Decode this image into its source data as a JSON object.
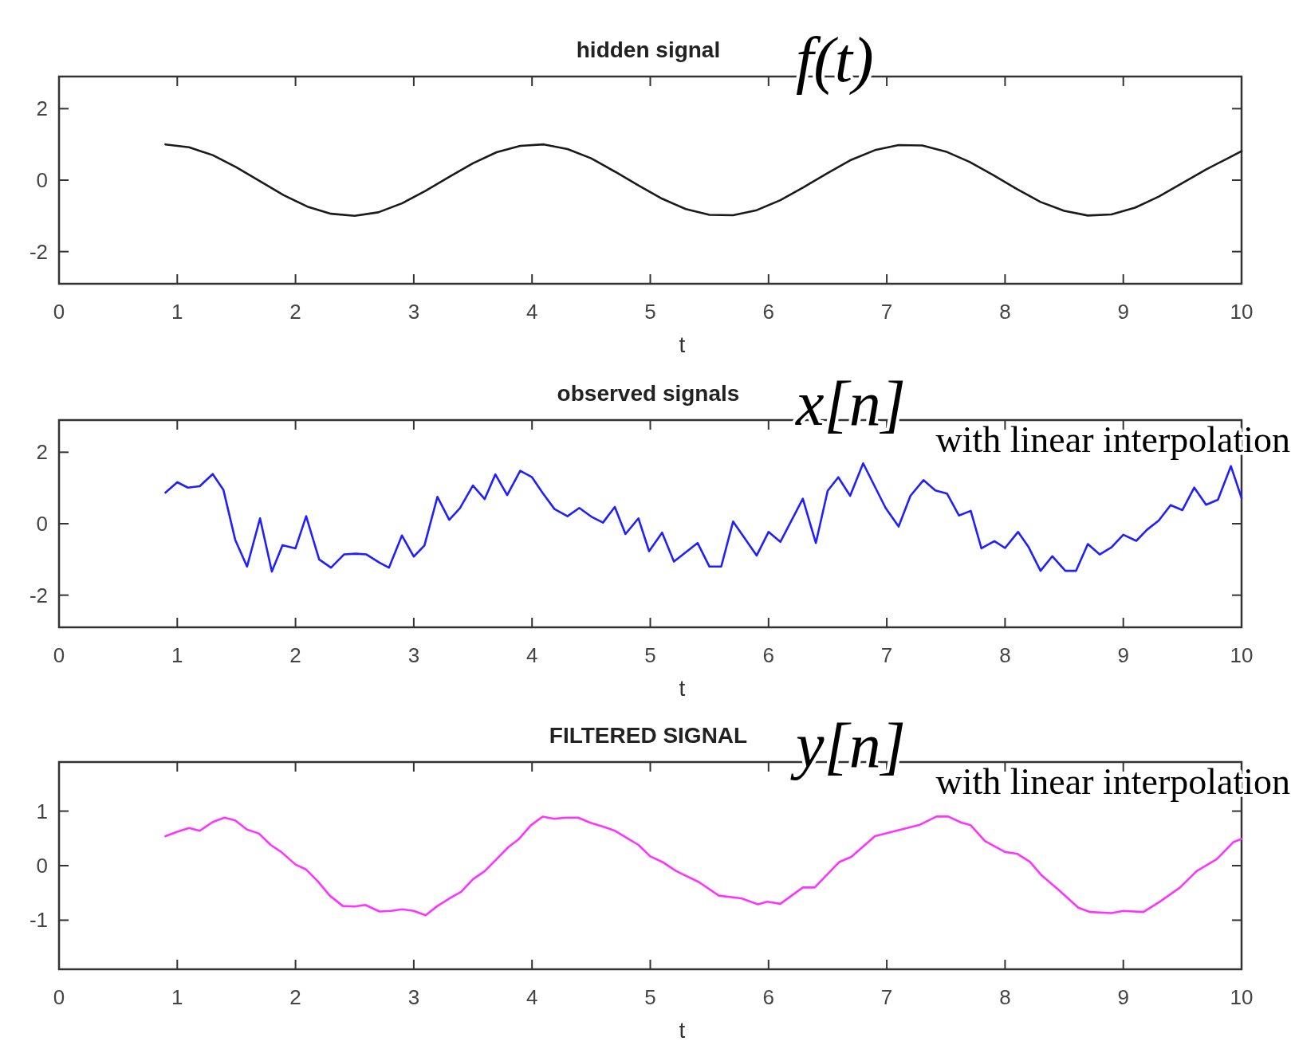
{
  "chart_data": [
    {
      "type": "line",
      "title": "hidden signal",
      "xlabel": "t",
      "annotations": [
        "f(t)"
      ],
      "xlim": [
        0,
        10
      ],
      "xticks": [
        0,
        1,
        2,
        3,
        4,
        5,
        6,
        7,
        8,
        9,
        10
      ],
      "ylim": [
        -2.9,
        2.9
      ],
      "yticks": [
        -2,
        0,
        2
      ],
      "grid": false,
      "series": [
        {
          "color": "#1a1a1a",
          "x": [
            0.9,
            1.1,
            1.3,
            1.5,
            1.7,
            1.9,
            2.1,
            2.3,
            2.5,
            2.7,
            2.9,
            3.1,
            3.3,
            3.5,
            3.7,
            3.9,
            4.1,
            4.3,
            4.5,
            4.7,
            4.9,
            5.1,
            5.3,
            5.5,
            5.7,
            5.9,
            6.1,
            6.3,
            6.5,
            6.7,
            6.9,
            7.1,
            7.3,
            7.5,
            7.7,
            7.9,
            8.1,
            8.3,
            8.5,
            8.7,
            8.9,
            9.1,
            9.3,
            9.5,
            9.7,
            9.9,
            10
          ],
          "values": [
            1.0,
            0.92,
            0.7,
            0.36,
            -0.03,
            -0.42,
            -0.74,
            -0.94,
            -1.0,
            -0.9,
            -0.65,
            -0.3,
            0.09,
            0.47,
            0.78,
            0.96,
            1.0,
            0.87,
            0.61,
            0.24,
            -0.15,
            -0.52,
            -0.81,
            -0.97,
            -0.98,
            -0.84,
            -0.56,
            -0.19,
            0.2,
            0.57,
            0.84,
            0.98,
            0.97,
            0.8,
            0.51,
            0.14,
            -0.25,
            -0.61,
            -0.86,
            -0.99,
            -0.96,
            -0.77,
            -0.46,
            -0.08,
            0.3,
            0.64,
            0.81
          ]
        }
      ]
    },
    {
      "type": "line",
      "title": "observed signals",
      "xlabel": "t",
      "annotations": [
        "x[n]",
        "with linear interpolation"
      ],
      "xlim": [
        0,
        10
      ],
      "xticks": [
        0,
        1,
        2,
        3,
        4,
        5,
        6,
        7,
        8,
        9,
        10
      ],
      "ylim": [
        -2.9,
        2.9
      ],
      "yticks": [
        -2,
        0,
        2
      ],
      "grid": false,
      "series": [
        {
          "color": "#1f1fff",
          "x": [
            0.9,
            1.0,
            1.09,
            1.19,
            1.3,
            1.39,
            1.49,
            1.59,
            1.7,
            1.8,
            1.89,
            2.0,
            2.09,
            2.2,
            2.3,
            2.41,
            2.51,
            2.6,
            2.71,
            2.79,
            2.9,
            3.0,
            3.09,
            3.2,
            3.3,
            3.39,
            3.5,
            3.6,
            3.69,
            3.79,
            3.9,
            4.0,
            4.09,
            4.19,
            4.3,
            4.4,
            4.5,
            4.6,
            4.7,
            4.79,
            4.9,
            4.99,
            5.1,
            5.2,
            5.4,
            5.5,
            5.6,
            5.7,
            5.9,
            6.0,
            6.1,
            6.29,
            6.4,
            6.5,
            6.59,
            6.69,
            6.8,
            6.99,
            7.1,
            7.2,
            7.31,
            7.41,
            7.51,
            7.61,
            7.71,
            7.8,
            7.91,
            8.0,
            8.11,
            8.2,
            8.3,
            8.4,
            8.51,
            8.6,
            8.7,
            8.8,
            8.9,
            9.0,
            9.11,
            9.2,
            9.3,
            9.4,
            9.5,
            9.6,
            9.7,
            9.8,
            9.91,
            10.0
          ],
          "values": [
            0.87,
            1.16,
            1.01,
            1.05,
            1.39,
            0.95,
            -0.45,
            -1.2,
            0.15,
            -1.34,
            -0.6,
            -0.69,
            0.21,
            -1.0,
            -1.23,
            -0.86,
            -0.84,
            -0.86,
            -1.09,
            -1.23,
            -0.33,
            -0.92,
            -0.61,
            0.75,
            0.11,
            0.43,
            1.07,
            0.69,
            1.38,
            0.8,
            1.48,
            1.3,
            0.86,
            0.41,
            0.21,
            0.44,
            0.2,
            0.03,
            0.47,
            -0.29,
            0.15,
            -0.77,
            -0.25,
            -1.06,
            -0.54,
            -1.2,
            -1.2,
            0.06,
            -0.89,
            -0.23,
            -0.51,
            0.7,
            -0.54,
            0.92,
            1.3,
            0.78,
            1.69,
            0.44,
            -0.08,
            0.78,
            1.22,
            0.93,
            0.84,
            0.23,
            0.36,
            -0.69,
            -0.49,
            -0.68,
            -0.23,
            -0.66,
            -1.32,
            -0.91,
            -1.32,
            -1.32,
            -0.57,
            -0.86,
            -0.66,
            -0.31,
            -0.48,
            -0.17,
            0.09,
            0.52,
            0.38,
            1.01,
            0.53,
            0.67,
            1.61,
            0.72
          ]
        }
      ]
    },
    {
      "type": "line",
      "title": "FILTERED SIGNAL",
      "xlabel": "t",
      "annotations": [
        "y[n]",
        "with linear interpolation"
      ],
      "xlim": [
        0,
        10
      ],
      "xticks": [
        0,
        1,
        2,
        3,
        4,
        5,
        6,
        7,
        8,
        9,
        10
      ],
      "ylim": [
        -1.9,
        1.9
      ],
      "yticks": [
        -1,
        0,
        1
      ],
      "grid": false,
      "series": [
        {
          "color": "#ff33ff",
          "x": [
            0.9,
            1.0,
            1.1,
            1.19,
            1.3,
            1.4,
            1.49,
            1.59,
            1.69,
            1.79,
            1.88,
            2.0,
            2.09,
            2.19,
            2.29,
            2.4,
            2.5,
            2.59,
            2.71,
            2.81,
            2.9,
            3.0,
            3.1,
            3.2,
            3.31,
            3.4,
            3.5,
            3.6,
            3.7,
            3.8,
            3.89,
            3.99,
            4.09,
            4.19,
            4.29,
            4.39,
            4.49,
            4.61,
            4.7,
            4.8,
            4.9,
            5.0,
            5.1,
            5.22,
            5.41,
            5.58,
            5.77,
            5.91,
            5.99,
            6.1,
            6.29,
            6.39,
            6.6,
            6.7,
            6.9,
            7.08,
            7.28,
            7.42,
            7.52,
            7.63,
            7.71,
            7.83,
            8.0,
            8.1,
            8.21,
            8.31,
            8.45,
            8.62,
            8.72,
            8.9,
            9.0,
            9.17,
            9.31,
            9.48,
            9.62,
            9.79,
            9.93,
            10.0
          ],
          "values": [
            0.54,
            0.62,
            0.69,
            0.64,
            0.8,
            0.88,
            0.83,
            0.66,
            0.59,
            0.38,
            0.25,
            0.02,
            -0.07,
            -0.29,
            -0.55,
            -0.74,
            -0.75,
            -0.72,
            -0.84,
            -0.83,
            -0.8,
            -0.83,
            -0.91,
            -0.74,
            -0.59,
            -0.48,
            -0.25,
            -0.1,
            0.12,
            0.34,
            0.49,
            0.74,
            0.9,
            0.86,
            0.88,
            0.88,
            0.79,
            0.71,
            0.64,
            0.51,
            0.38,
            0.17,
            0.07,
            -0.1,
            -0.3,
            -0.55,
            -0.6,
            -0.71,
            -0.66,
            -0.7,
            -0.4,
            -0.4,
            0.07,
            0.16,
            0.54,
            0.64,
            0.75,
            0.9,
            0.9,
            0.79,
            0.74,
            0.45,
            0.25,
            0.22,
            0.07,
            -0.18,
            -0.44,
            -0.77,
            -0.85,
            -0.87,
            -0.83,
            -0.85,
            -0.66,
            -0.4,
            -0.1,
            0.12,
            0.43,
            0.49
          ]
        }
      ]
    }
  ]
}
